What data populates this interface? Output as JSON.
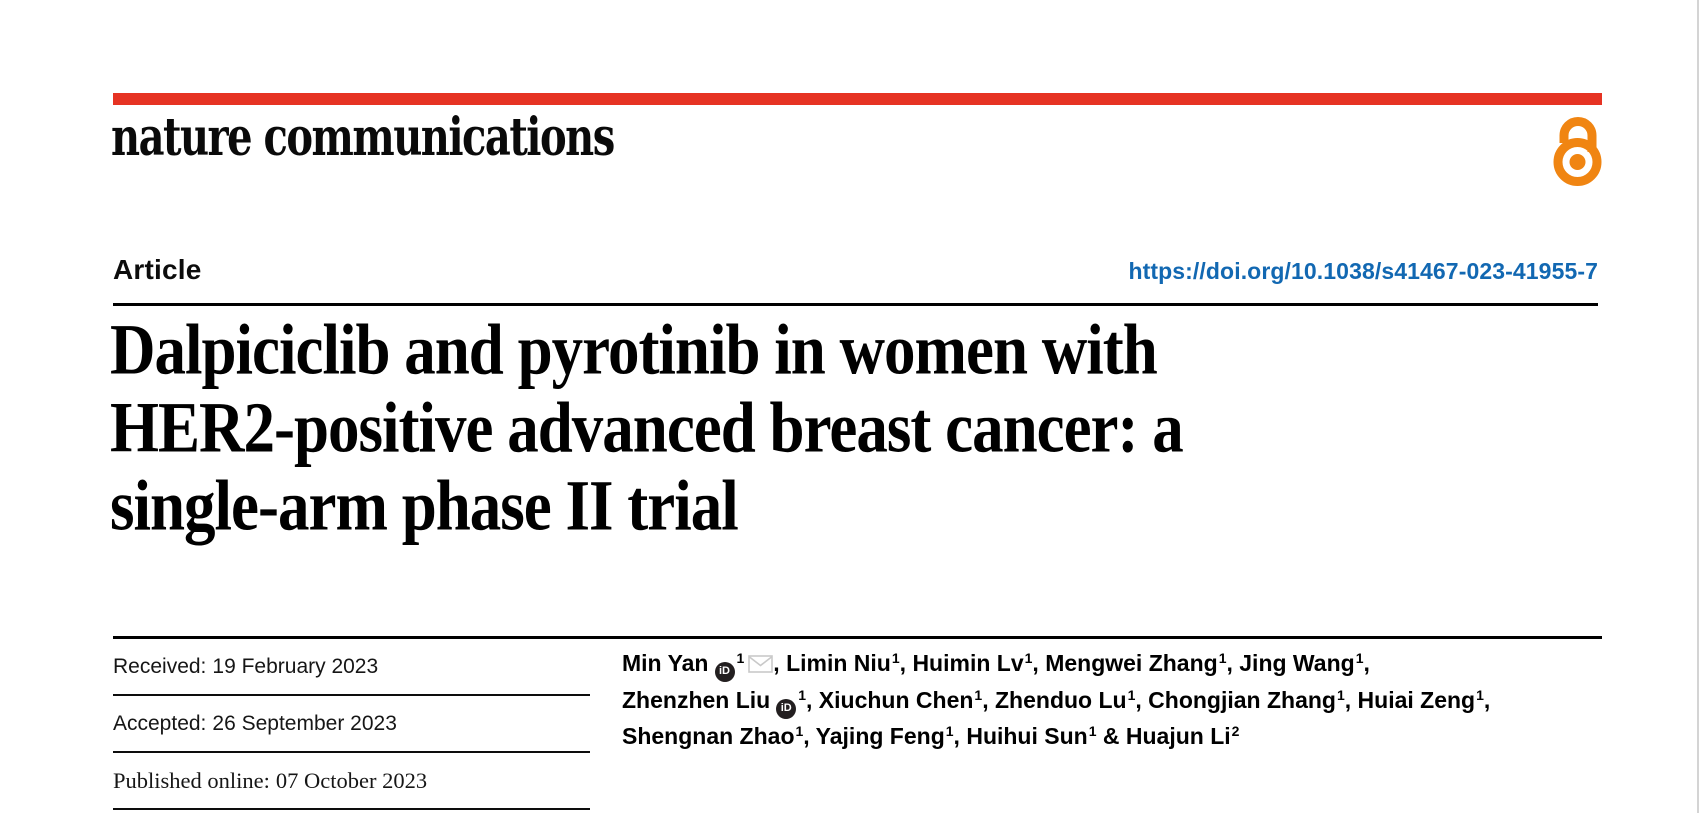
{
  "masthead": {
    "logo_text": "nature communications",
    "open_access_icon": "open-padlock-icon"
  },
  "article_header": {
    "type_label": "Article",
    "doi_url": "https://doi.org/10.1038/s41467-023-41955-7"
  },
  "title": {
    "lines": [
      "Dalpiciclib and pyrotinib in women with",
      "HER2-positive advanced breast cancer: a",
      "single-arm phase II trial"
    ],
    "full_text": "Dalpiciclib and pyrotinib in women with HER2-positive advanced breast cancer: a single-arm phase II trial"
  },
  "dates": {
    "rows": [
      {
        "label": "Received:",
        "value": "19 February 2023"
      },
      {
        "label": "Accepted:",
        "value": "26 September 2023"
      },
      {
        "label": "Published online:",
        "value": "07 October 2023"
      }
    ]
  },
  "authors": {
    "lines": [
      [
        {
          "name": "Min Yan",
          "orcid": true,
          "sup": "1",
          "envelope": true,
          "sep": ", "
        },
        {
          "name": "Limin Niu",
          "sup": "1",
          "sep": ", "
        },
        {
          "name": "Huimin Lv",
          "sup": "1",
          "sep": ", "
        },
        {
          "name": "Mengwei Zhang",
          "sup": "1",
          "sep": ", "
        },
        {
          "name": "Jing Wang",
          "sup": "1",
          "sep": ","
        }
      ],
      [
        {
          "name": "Zhenzhen Liu",
          "orcid": true,
          "sup": "1",
          "sep": ", "
        },
        {
          "name": "Xiuchun Chen",
          "sup": "1",
          "sep": ", "
        },
        {
          "name": "Zhenduo Lu",
          "sup": "1",
          "sep": ", "
        },
        {
          "name": "Chongjian Zhang",
          "sup": "1",
          "sep": ", "
        },
        {
          "name": "Huiai Zeng",
          "sup": "1",
          "sep": ","
        }
      ],
      [
        {
          "name": "Shengnan Zhao",
          "sup": "1",
          "sep": ", "
        },
        {
          "name": "Yajing Feng",
          "sup": "1",
          "sep": ", "
        },
        {
          "name": "Huihui Sun",
          "sup": "1",
          "sep": " & "
        },
        {
          "name": "Huajun Li",
          "sup": "2",
          "sep": ""
        }
      ]
    ]
  },
  "colors": {
    "brand_red": "#e63323",
    "link_blue": "#1268b2",
    "open_access_orange": "#f08512",
    "rule_black": "#000000"
  }
}
